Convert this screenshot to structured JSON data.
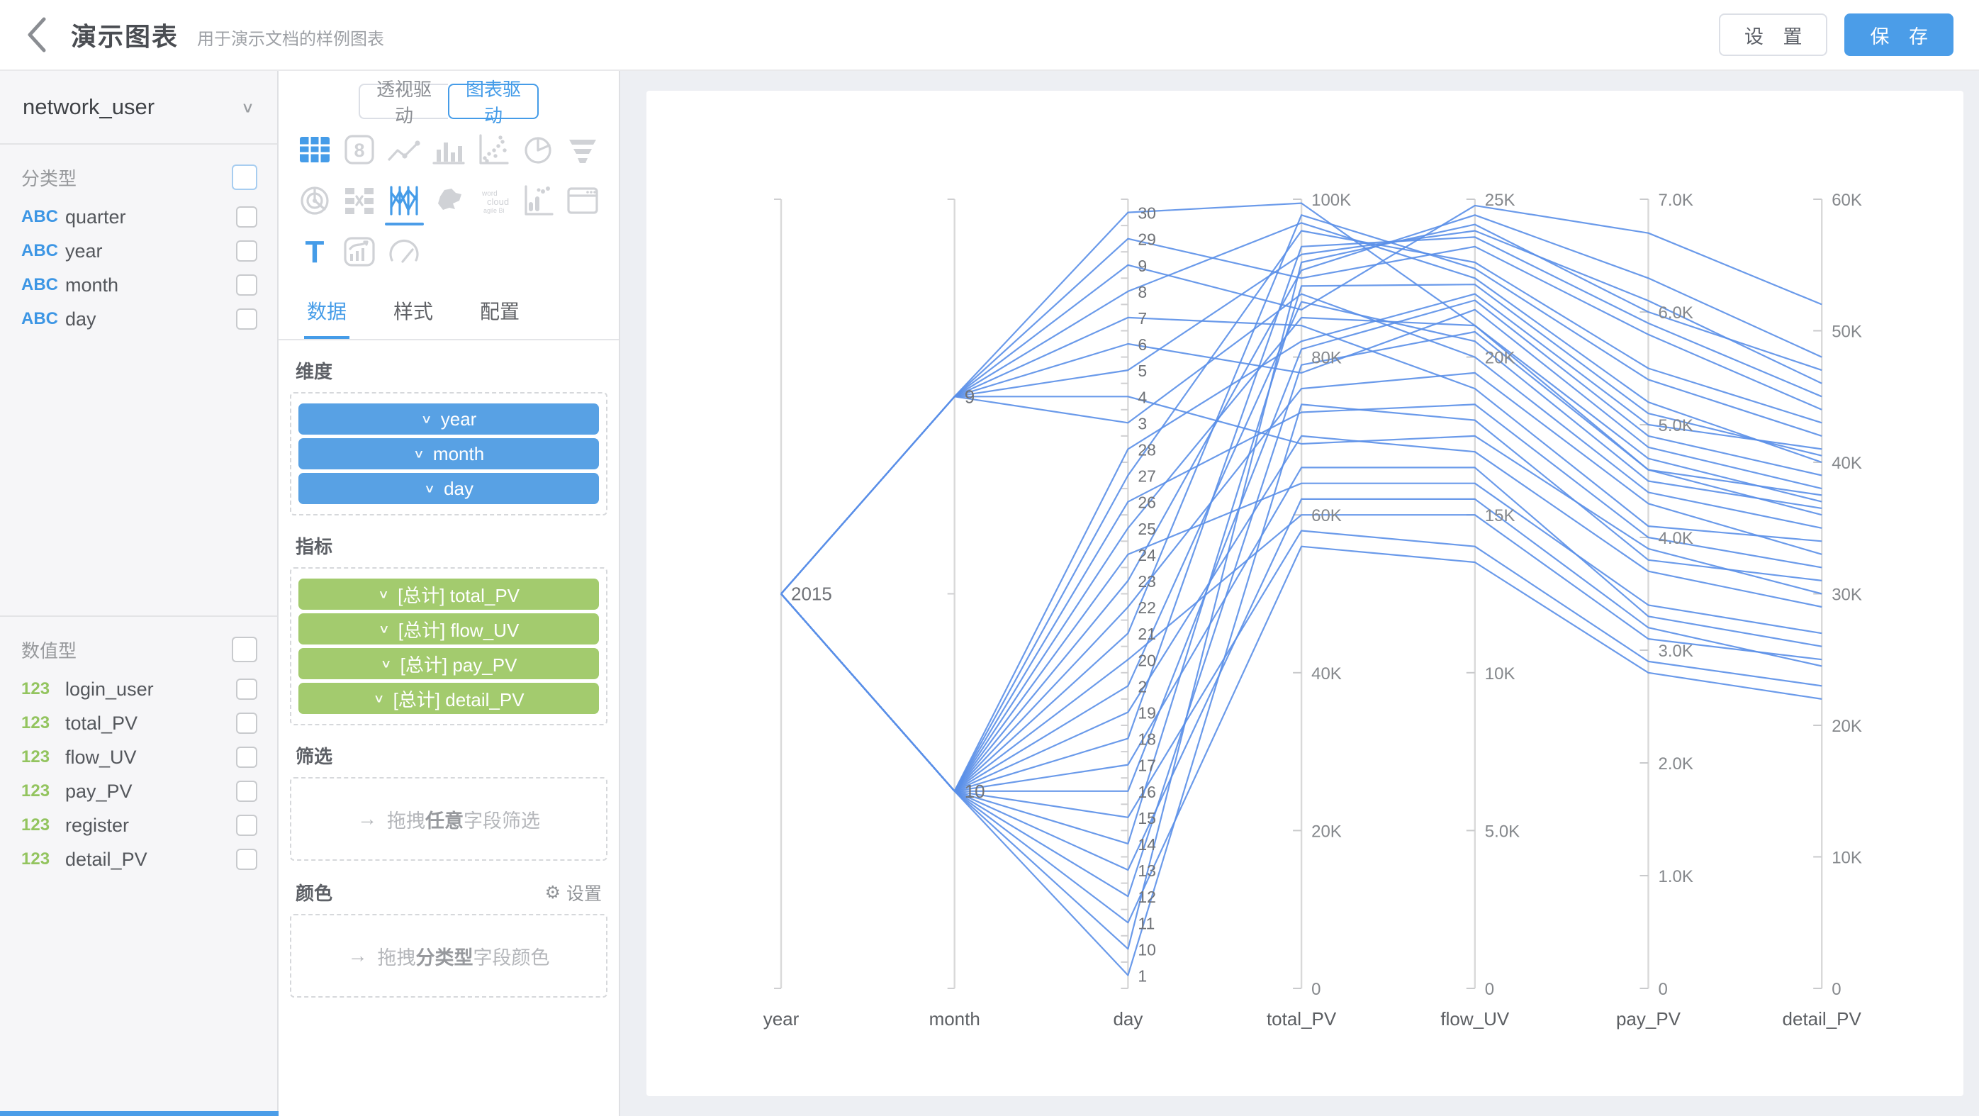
{
  "header": {
    "title": "演示图表",
    "subtitle": "用于演示文档的样例图表",
    "settings_label": "设 置",
    "save_label": "保 存"
  },
  "icons_glyphs": {
    "chevron_down": "∨",
    "arrow_right": "→",
    "gear": "⚙",
    "back_chevron": "‹"
  },
  "fields_panel": {
    "dataset": "network_user",
    "sections": [
      {
        "title": "分类型",
        "header_checkbox_focused": true,
        "fields": [
          {
            "type": "ABC",
            "name": "quarter",
            "checked": false
          },
          {
            "type": "ABC",
            "name": "year",
            "checked": false
          },
          {
            "type": "ABC",
            "name": "month",
            "checked": false
          },
          {
            "type": "ABC",
            "name": "day",
            "checked": false
          }
        ]
      },
      {
        "title": "数值型",
        "header_checkbox_focused": false,
        "fields": [
          {
            "type": "123",
            "name": "login_user",
            "checked": false
          },
          {
            "type": "123",
            "name": "total_PV",
            "checked": false
          },
          {
            "type": "123",
            "name": "flow_UV",
            "checked": false
          },
          {
            "type": "123",
            "name": "pay_PV",
            "checked": false
          },
          {
            "type": "123",
            "name": "register",
            "checked": false
          },
          {
            "type": "123",
            "name": "detail_PV",
            "checked": false
          }
        ]
      }
    ]
  },
  "config_panel": {
    "mode_toggle": {
      "left": "透视驱动",
      "right": "图表驱动",
      "active": "图表驱动"
    },
    "chart_icons": [
      {
        "name": "table",
        "active": true,
        "underline": false
      },
      {
        "name": "kpi-card",
        "active": false,
        "underline": false
      },
      {
        "name": "line-chart",
        "active": false,
        "underline": false
      },
      {
        "name": "bar-chart",
        "active": false,
        "underline": false
      },
      {
        "name": "scatter",
        "active": false,
        "underline": false
      },
      {
        "name": "pie",
        "active": false,
        "underline": false
      },
      {
        "name": "funnel",
        "active": false,
        "underline": false
      },
      {
        "name": "radar",
        "active": false,
        "underline": false
      },
      {
        "name": "sankey",
        "active": false,
        "underline": false
      },
      {
        "name": "parallel",
        "active": true,
        "underline": true
      },
      {
        "name": "map-china",
        "active": false,
        "underline": false
      },
      {
        "name": "word-cloud",
        "active": false,
        "underline": false
      },
      {
        "name": "punch-card",
        "active": false,
        "underline": false
      },
      {
        "name": "iframe-window",
        "active": false,
        "underline": false
      },
      {
        "name": "text",
        "active": true,
        "underline": false
      },
      {
        "name": "combo-chart",
        "active": false,
        "underline": false
      },
      {
        "name": "gauge",
        "active": false,
        "underline": false
      }
    ],
    "tabs": [
      {
        "label": "数据",
        "active": true
      },
      {
        "label": "样式",
        "active": false
      },
      {
        "label": "配置",
        "active": false
      }
    ],
    "dimension_section": {
      "title": "维度",
      "pills": [
        "year",
        "month",
        "day"
      ]
    },
    "metric_section": {
      "title": "指标",
      "pills": [
        "[总计] total_PV",
        "[总计] flow_UV",
        "[总计] pay_PV",
        "[总计] detail_PV"
      ]
    },
    "filter_section": {
      "title": "筛选",
      "drop_prefix": "拖拽",
      "drop_bold": "任意",
      "drop_suffix": "字段筛选"
    },
    "color_section": {
      "title": "颜色",
      "action_label": "设置",
      "drop_prefix": "拖拽",
      "drop_bold": "分类型",
      "drop_suffix": "字段颜色"
    }
  },
  "chart_data": {
    "type": "parallel",
    "line_color": "#5a8fe8",
    "axes": [
      {
        "name": "year",
        "kind": "category",
        "categories": [
          "2015"
        ]
      },
      {
        "name": "month",
        "kind": "category",
        "categories": [
          "9",
          "10"
        ]
      },
      {
        "name": "day",
        "kind": "category",
        "categories": [
          "30",
          "29",
          "9",
          "8",
          "7",
          "6",
          "5",
          "4",
          "3",
          "28",
          "27",
          "26",
          "25",
          "24",
          "23",
          "22",
          "21",
          "20",
          "2",
          "19",
          "18",
          "17",
          "16",
          "15",
          "14",
          "13",
          "12",
          "11",
          "10",
          "1"
        ]
      },
      {
        "name": "total_PV",
        "kind": "value",
        "max": 100000,
        "ticks": [
          "100K",
          "80K",
          "60K",
          "40K",
          "20K",
          "0"
        ]
      },
      {
        "name": "flow_UV",
        "kind": "value",
        "max": 25000,
        "ticks": [
          "25K",
          "20K",
          "15K",
          "10K",
          "5.0K",
          "0"
        ]
      },
      {
        "name": "pay_PV",
        "kind": "value",
        "max": 7000,
        "ticks": [
          "7.0K",
          "6.0K",
          "5.0K",
          "4.0K",
          "3.0K",
          "2.0K",
          "1.0K",
          "0"
        ]
      },
      {
        "name": "detail_PV",
        "kind": "value",
        "max": 60000,
        "ticks": [
          "60K",
          "50K",
          "40K",
          "30K",
          "20K",
          "10K",
          "0"
        ]
      }
    ],
    "records": [
      {
        "year": "2015",
        "month": "9",
        "day": "30",
        "total_PV": 99500,
        "flow_UV": 21000,
        "pay_PV": 4600,
        "detail_PV": 36000
      },
      {
        "year": "2015",
        "month": "9",
        "day": "29",
        "total_PV": 90000,
        "flow_UV": 23500,
        "pay_PV": 5800,
        "detail_PV": 44000
      },
      {
        "year": "2015",
        "month": "9",
        "day": "9",
        "total_PV": 86000,
        "flow_UV": 24800,
        "pay_PV": 6700,
        "detail_PV": 52000
      },
      {
        "year": "2015",
        "month": "9",
        "day": "8",
        "total_PV": 97000,
        "flow_UV": 22500,
        "pay_PV": 5200,
        "detail_PV": 40000
      },
      {
        "year": "2015",
        "month": "9",
        "day": "7",
        "total_PV": 84000,
        "flow_UV": 19000,
        "pay_PV": 4100,
        "detail_PV": 34000
      },
      {
        "year": "2015",
        "month": "9",
        "day": "6",
        "total_PV": 78000,
        "flow_UV": 21500,
        "pay_PV": 4800,
        "detail_PV": 38000
      },
      {
        "year": "2015",
        "month": "9",
        "day": "5",
        "total_PV": 93000,
        "flow_UV": 24000,
        "pay_PV": 6100,
        "detail_PV": 46000
      },
      {
        "year": "2015",
        "month": "9",
        "day": "4",
        "total_PV": 69000,
        "flow_UV": 17500,
        "pay_PV": 3900,
        "detail_PV": 30000
      },
      {
        "year": "2015",
        "month": "9",
        "day": "3",
        "total_PV": 88000,
        "flow_UV": 20000,
        "pay_PV": 4400,
        "detail_PV": 35000
      },
      {
        "year": "2015",
        "month": "10",
        "day": "28",
        "total_PV": 82000,
        "flow_UV": 22000,
        "pay_PV": 5000,
        "detail_PV": 41000
      },
      {
        "year": "2015",
        "month": "10",
        "day": "27",
        "total_PV": 96000,
        "flow_UV": 23000,
        "pay_PV": 5500,
        "detail_PV": 43000
      },
      {
        "year": "2015",
        "month": "10",
        "day": "26",
        "total_PV": 73000,
        "flow_UV": 18500,
        "pay_PV": 4000,
        "detail_PV": 32000
      },
      {
        "year": "2015",
        "month": "10",
        "day": "25",
        "total_PV": 85000,
        "flow_UV": 21000,
        "pay_PV": 4700,
        "detail_PV": 37000
      },
      {
        "year": "2015",
        "month": "10",
        "day": "24",
        "total_PV": 64000,
        "flow_UV": 16000,
        "pay_PV": 3400,
        "detail_PV": 27000
      },
      {
        "year": "2015",
        "month": "10",
        "day": "23",
        "total_PV": 91000,
        "flow_UV": 24500,
        "pay_PV": 6300,
        "detail_PV": 48000
      },
      {
        "year": "2015",
        "month": "10",
        "day": "22",
        "total_PV": 76000,
        "flow_UV": 19500,
        "pay_PV": 4300,
        "detail_PV": 33000
      },
      {
        "year": "2015",
        "month": "10",
        "day": "21",
        "total_PV": 98000,
        "flow_UV": 22800,
        "pay_PV": 5400,
        "detail_PV": 42000
      },
      {
        "year": "2015",
        "month": "10",
        "day": "20",
        "total_PV": 60000,
        "flow_UV": 15000,
        "pay_PV": 3100,
        "detail_PV": 25000
      },
      {
        "year": "2015",
        "month": "10",
        "day": "2",
        "total_PV": 87000,
        "flow_UV": 20500,
        "pay_PV": 4500,
        "detail_PV": 36500
      },
      {
        "year": "2015",
        "month": "10",
        "day": "19",
        "total_PV": 70000,
        "flow_UV": 17000,
        "pay_PV": 3700,
        "detail_PV": 29000
      },
      {
        "year": "2015",
        "month": "10",
        "day": "18",
        "total_PV": 94000,
        "flow_UV": 23800,
        "pay_PV": 5900,
        "detail_PV": 45000
      },
      {
        "year": "2015",
        "month": "10",
        "day": "17",
        "total_PV": 66000,
        "flow_UV": 16500,
        "pay_PV": 3300,
        "detail_PV": 26000
      },
      {
        "year": "2015",
        "month": "10",
        "day": "16",
        "total_PV": 81000,
        "flow_UV": 21800,
        "pay_PV": 4900,
        "detail_PV": 39000
      },
      {
        "year": "2015",
        "month": "10",
        "day": "15",
        "total_PV": 58000,
        "flow_UV": 14000,
        "pay_PV": 2900,
        "detail_PV": 23000
      },
      {
        "year": "2015",
        "month": "10",
        "day": "14",
        "total_PV": 89000,
        "flow_UV": 22300,
        "pay_PV": 5100,
        "detail_PV": 40500
      },
      {
        "year": "2015",
        "month": "10",
        "day": "13",
        "total_PV": 62000,
        "flow_UV": 15500,
        "pay_PV": 3200,
        "detail_PV": 24500
      },
      {
        "year": "2015",
        "month": "10",
        "day": "12",
        "total_PV": 79000,
        "flow_UV": 20800,
        "pay_PV": 4600,
        "detail_PV": 37500
      },
      {
        "year": "2015",
        "month": "10",
        "day": "11",
        "total_PV": 56000,
        "flow_UV": 13500,
        "pay_PV": 2800,
        "detail_PV": 22000
      },
      {
        "year": "2015",
        "month": "10",
        "day": "10",
        "total_PV": 92000,
        "flow_UV": 24200,
        "pay_PV": 6000,
        "detail_PV": 47000
      },
      {
        "year": "2015",
        "month": "10",
        "day": "1",
        "total_PV": 74000,
        "flow_UV": 18000,
        "pay_PV": 3800,
        "detail_PV": 31000
      }
    ]
  },
  "colors": {
    "accent": "#459ce8",
    "primary_button": "#4b9de8",
    "pill_blue": "#58a1e4",
    "pill_green": "#a3cb6e",
    "abc_blue": "#3d96e4",
    "num_green": "#93c45f",
    "line_blue": "#5a8fe8",
    "icon_gray": "#d0d2d6",
    "axis_gray": "#d9d9d9"
  }
}
